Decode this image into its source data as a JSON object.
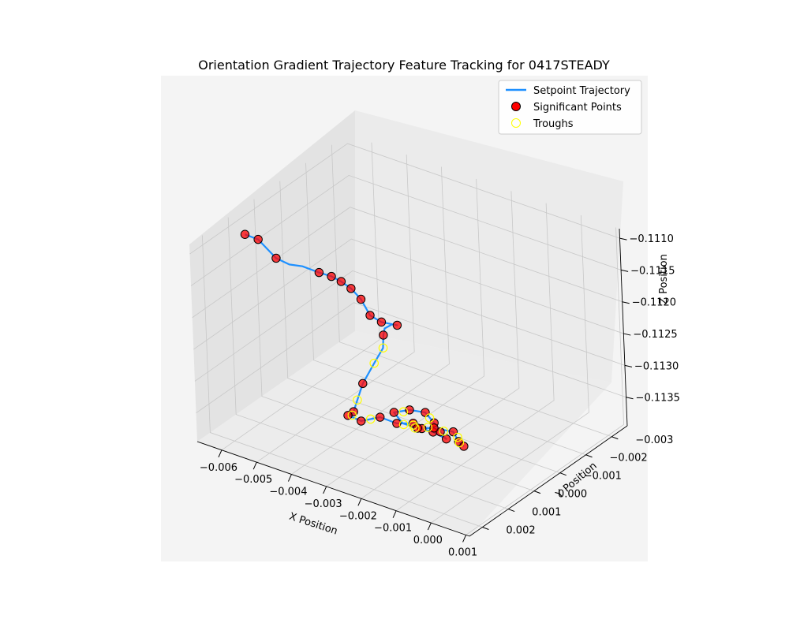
{
  "chart_data": {
    "type": "scatter",
    "subtype": "3d-trajectory",
    "title": "Orientation Gradient Trajectory Feature Tracking for 0417STEADY",
    "xlabel": "X Position",
    "ylabel": "Y Position",
    "zlabel": "Z Position",
    "x_ticks": [
      "−0.006",
      "−0.005",
      "−0.004",
      "−0.003",
      "−0.002",
      "−0.001",
      "0.000",
      "0.001"
    ],
    "y_ticks": [
      "−0.003",
      "−0.002",
      "−0.001",
      "0.000",
      "0.001",
      "0.002"
    ],
    "z_ticks": [
      "−0.1110",
      "−0.1115",
      "−0.1120",
      "−0.1125",
      "−0.1130",
      "−0.1135"
    ],
    "xlim": [
      -0.0067,
      0.0011
    ],
    "ylim": [
      -0.0036,
      0.0025
    ],
    "zlim": [
      -0.11395,
      -0.11085
    ],
    "grid": true,
    "legend_position": "top-right",
    "series_style": {
      "trajectory_color": "#1e90ff",
      "significant_fill": "#ff0000",
      "significant_edge": "#000000",
      "trough_edge": "#ffff00"
    },
    "legend": [
      {
        "label": "Setpoint Trajectory",
        "kind": "line"
      },
      {
        "label": "Significant Points",
        "kind": "marker-filled"
      },
      {
        "label": "Troughs",
        "kind": "marker-hollow"
      }
    ],
    "trajectory": [
      [
        -0.006,
        0.0013,
        -0.1109
      ],
      [
        -0.0057,
        0.0012,
        -0.11095
      ],
      [
        -0.0052,
        0.0012,
        -0.11115
      ],
      [
        -0.0049,
        0.0011,
        -0.11122
      ],
      [
        -0.0046,
        0.001,
        -0.11122
      ],
      [
        -0.0042,
        0.0009,
        -0.11127
      ],
      [
        -0.004,
        0.0007,
        -0.11135
      ],
      [
        -0.0038,
        0.0006,
        -0.11142
      ],
      [
        -0.0036,
        0.0005,
        -0.11152
      ],
      [
        -0.0034,
        0.0004,
        -0.11168
      ],
      [
        -0.003,
        0.0006,
        -0.1118
      ],
      [
        -0.0026,
        0.0007,
        -0.1118
      ],
      [
        -0.0023,
        0.0005,
        -0.11185
      ],
      [
        -0.0026,
        0.0003,
        -0.11195
      ],
      [
        -0.0029,
        0.0002,
        -0.1121
      ],
      [
        -0.0031,
        0.0,
        -0.1123
      ],
      [
        -0.0032,
        -0.0001,
        -0.11255
      ],
      [
        -0.0034,
        0.0,
        -0.1128
      ],
      [
        -0.0036,
        0.0002,
        -0.1131
      ],
      [
        -0.0037,
        0.0003,
        -0.11335
      ],
      [
        -0.0039,
        0.0002,
        -0.1136
      ],
      [
        -0.0041,
        0.0,
        -0.11375
      ],
      [
        -0.0043,
        -0.0001,
        -0.11382
      ],
      [
        -0.004,
        -0.0002,
        -0.11388
      ],
      [
        -0.0036,
        -0.0004,
        -0.1138
      ],
      [
        -0.0032,
        -0.0005,
        -0.11385
      ],
      [
        -0.0028,
        -0.0006,
        -0.1138
      ],
      [
        -0.0024,
        -0.0004,
        -0.11375
      ],
      [
        -0.002,
        -0.0003,
        -0.1137
      ],
      [
        -0.0017,
        -0.0004,
        -0.11378
      ],
      [
        -0.0021,
        -0.0007,
        -0.11383
      ],
      [
        -0.0025,
        -0.001,
        -0.11385
      ],
      [
        -0.0029,
        -0.0012,
        -0.11382
      ],
      [
        -0.0032,
        -0.001,
        -0.11378
      ],
      [
        -0.0035,
        -0.0008,
        -0.11382
      ],
      [
        -0.0031,
        -0.0006,
        -0.11386
      ],
      [
        -0.0026,
        -0.0005,
        -0.11381
      ],
      [
        -0.0022,
        -0.0006,
        -0.11376
      ],
      [
        -0.0018,
        -0.0008,
        -0.1138
      ],
      [
        -0.0015,
        -0.0006,
        -0.11384
      ],
      [
        -0.0012,
        -0.0004,
        -0.1138
      ]
    ],
    "significant_points": [
      [
        -0.006,
        0.0013,
        -0.1109
      ],
      [
        -0.0057,
        0.0012,
        -0.11095
      ],
      [
        -0.0052,
        0.0012,
        -0.11115
      ],
      [
        -0.0042,
        0.0009,
        -0.11127
      ],
      [
        -0.004,
        0.0007,
        -0.11135
      ],
      [
        -0.0038,
        0.0006,
        -0.11142
      ],
      [
        -0.0036,
        0.0005,
        -0.11152
      ],
      [
        -0.0034,
        0.0004,
        -0.11168
      ],
      [
        -0.003,
        0.0006,
        -0.1118
      ],
      [
        -0.0026,
        0.0007,
        -0.1118
      ],
      [
        -0.0023,
        0.0005,
        -0.11185
      ],
      [
        -0.0031,
        0.0,
        -0.1123
      ],
      [
        -0.0036,
        0.0002,
        -0.1131
      ],
      [
        -0.0039,
        0.0002,
        -0.1136
      ],
      [
        -0.0043,
        -0.0001,
        -0.11382
      ],
      [
        -0.004,
        -0.0002,
        -0.11388
      ],
      [
        -0.0036,
        -0.0004,
        -0.1138
      ],
      [
        -0.0032,
        -0.0005,
        -0.11385
      ],
      [
        -0.0028,
        -0.0006,
        -0.1138
      ],
      [
        -0.0024,
        -0.0004,
        -0.11375
      ],
      [
        -0.002,
        -0.0003,
        -0.1137
      ],
      [
        -0.0017,
        -0.0004,
        -0.11378
      ],
      [
        -0.0021,
        -0.0007,
        -0.11383
      ],
      [
        -0.0025,
        -0.001,
        -0.11385
      ],
      [
        -0.0029,
        -0.0012,
        -0.11382
      ],
      [
        -0.0032,
        -0.001,
        -0.11378
      ],
      [
        -0.0035,
        -0.0008,
        -0.11382
      ],
      [
        -0.0026,
        -0.0005,
        -0.11381
      ],
      [
        -0.0022,
        -0.0006,
        -0.11376
      ],
      [
        -0.0018,
        -0.0008,
        -0.1138
      ],
      [
        -0.0015,
        -0.0006,
        -0.11384
      ],
      [
        -0.0012,
        -0.0004,
        -0.1138
      ]
    ],
    "troughs": [
      [
        -0.0032,
        -0.0001,
        -0.11255
      ],
      [
        -0.0034,
        0.0,
        -0.1128
      ],
      [
        -0.0037,
        0.0003,
        -0.11335
      ],
      [
        -0.0041,
        0.0,
        -0.11375
      ],
      [
        -0.0038,
        -0.0003,
        -0.11384
      ],
      [
        -0.003,
        -0.0005,
        -0.11383
      ],
      [
        -0.0026,
        -0.0004,
        -0.11378
      ],
      [
        -0.0023,
        -0.0005,
        -0.11374
      ],
      [
        -0.002,
        -0.0007,
        -0.1138
      ],
      [
        -0.0027,
        -0.0011,
        -0.11384
      ],
      [
        -0.0033,
        -0.0009,
        -0.1138
      ],
      [
        -0.0028,
        -0.0006,
        -0.11383
      ],
      [
        -0.0016,
        -0.0007,
        -0.11382
      ],
      [
        -0.0014,
        -0.0005,
        -0.11381
      ]
    ]
  }
}
